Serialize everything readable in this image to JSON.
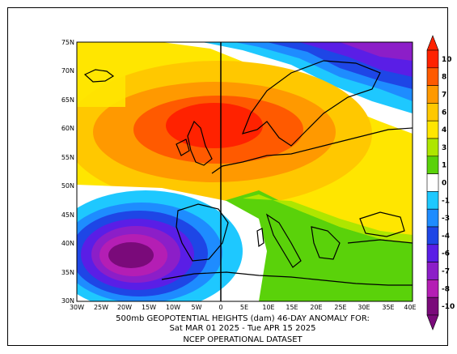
{
  "caption": {
    "line1": "500mb GEOPOTENTIAL HEIGHTS (dam)    46-DAY ANOMALY FOR:",
    "line2": "Sat MAR 01 2025 - Tue APR 15 2025",
    "line3": "NCEP OPERATIONAL DATASET"
  },
  "map": {
    "lat_labels": [
      "75N",
      "70N",
      "65N",
      "60N",
      "55N",
      "50N",
      "45N",
      "40N",
      "35N",
      "30N"
    ],
    "lon_labels": [
      "30W",
      "25W",
      "20W",
      "15W",
      "10W",
      "5W",
      "0",
      "5E",
      "10E",
      "15E",
      "20E",
      "25E",
      "30E",
      "35E",
      "40E"
    ]
  },
  "colorbar": {
    "labels": [
      "10",
      "8",
      "7",
      "6",
      "4",
      "3",
      "1",
      "0",
      "-1",
      "-3",
      "-4",
      "-6",
      "-7",
      "-8",
      "-10"
    ],
    "colors": [
      "#ff2200",
      "#ff5a00",
      "#ff9900",
      "#ffc800",
      "#ffe600",
      "#aee600",
      "#5ad20a",
      "#ffffff",
      "#1ec8ff",
      "#1e8cff",
      "#1e46e6",
      "#5a1ee6",
      "#8c1ec8",
      "#b41eb4",
      "#7a0a7a"
    ]
  },
  "anomaly_colors": {
    "red": "#ff2200",
    "orange_red": "#ff5a00",
    "orange": "#ff9900",
    "gold": "#ffc800",
    "yellow": "#ffe600",
    "light_green": "#aee600",
    "green": "#5ad20a",
    "white": "#ffffff",
    "cyan": "#1ec8ff",
    "blue": "#1e8cff",
    "dark_blue": "#1e46e6",
    "violet": "#5a1ee6",
    "purple": "#8c1ec8",
    "magenta": "#b41eb4",
    "dark_purple": "#7a0a7a"
  }
}
